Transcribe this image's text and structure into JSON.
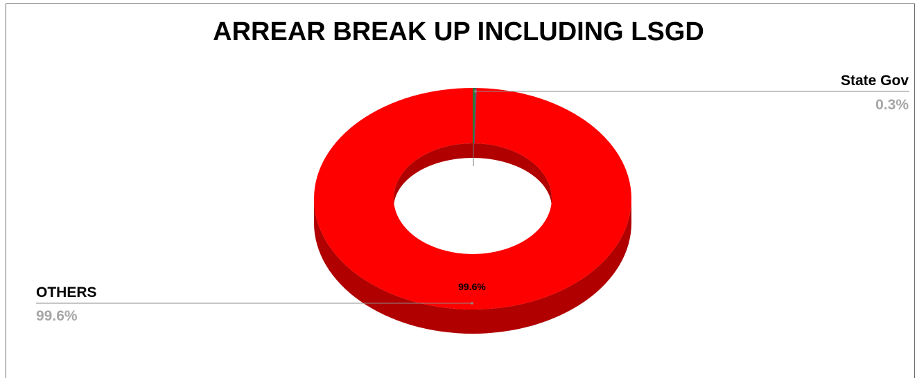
{
  "chart_data": {
    "type": "pie",
    "variant": "3d-doughnut",
    "title": "ARREAR BREAK UP INCLUDING LSGD",
    "slices": [
      {
        "name": "State Gov",
        "value": 0.3,
        "label": "0.3%",
        "color": "#2e7d32"
      },
      {
        "name": "",
        "value": 0.1,
        "label": "",
        "color": "#7b3fa0"
      },
      {
        "name": "OTHERS",
        "value": 99.6,
        "label": "99.6%",
        "color": "#ff0000"
      }
    ],
    "center_label": "99.6%",
    "legend": "leader-line callouts",
    "colors": {
      "main": "#ff0000",
      "main_side": "#b00000",
      "label_grey": "#a6a6a6"
    }
  }
}
